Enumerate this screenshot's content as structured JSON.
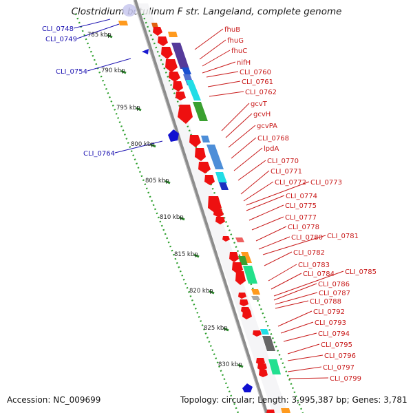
{
  "title": "Clostridium botulinum F str. Langeland, complete genome",
  "footer": {
    "accession": "Accession: NC_009699",
    "topology": "Topology: circular; Length: 3,995,387 bp; Genes: 3,781"
  },
  "colors": {
    "reverse_label": "#1a10b0",
    "forward_label": "#c81818",
    "backbone": "#8c8c8c",
    "ruler_dots": "#2ea02e"
  },
  "ruler": {
    "ticks": [
      {
        "label": "785 kbp"
      },
      {
        "label": "790 kbp"
      },
      {
        "label": "795 kbp"
      },
      {
        "label": "800 kbp"
      },
      {
        "label": "805 kbp"
      },
      {
        "label": "810 kbp"
      },
      {
        "label": "815 kbp"
      },
      {
        "label": "820 kbp"
      },
      {
        "label": "825 kbp"
      },
      {
        "label": "830 kbp"
      }
    ]
  },
  "left_labels": [
    {
      "text": "CLI_0748"
    },
    {
      "text": "CLI_0749"
    },
    {
      "text": "CLI_0754"
    },
    {
      "text": "CLI_0764"
    }
  ],
  "right_labels": [
    {
      "text": "fhuB"
    },
    {
      "text": "fhuG"
    },
    {
      "text": "fhuC"
    },
    {
      "text": "nifH"
    },
    {
      "text": "CLI_0760"
    },
    {
      "text": "CLI_0761"
    },
    {
      "text": "CLI_0762"
    },
    {
      "text": "gcvT"
    },
    {
      "text": "gcvH"
    },
    {
      "text": "gcvPA"
    },
    {
      "text": "CLI_0768"
    },
    {
      "text": "lpdA"
    },
    {
      "text": "CLI_0770"
    },
    {
      "text": "CLI_0771"
    },
    {
      "text": "CLI_0772"
    },
    {
      "text": "CLI_0773"
    },
    {
      "text": "CLI_0774"
    },
    {
      "text": "CLI_0775"
    },
    {
      "text": "CLI_0777"
    },
    {
      "text": "CLI_0778"
    },
    {
      "text": "CLI_0780"
    },
    {
      "text": "CLI_0781"
    },
    {
      "text": "CLI_0782"
    },
    {
      "text": "CLI_0783"
    },
    {
      "text": "CLI_0784"
    },
    {
      "text": "CLI_0785"
    },
    {
      "text": "CLI_0786"
    },
    {
      "text": "CLI_0787"
    },
    {
      "text": "CLI_0788"
    },
    {
      "text": "CLI_0792"
    },
    {
      "text": "CLI_0793"
    },
    {
      "text": "CLI_0794"
    },
    {
      "text": "CLI_0795"
    },
    {
      "text": "CLI_0796"
    },
    {
      "text": "CLI_0797"
    },
    {
      "text": "CLI_0799"
    }
  ]
}
